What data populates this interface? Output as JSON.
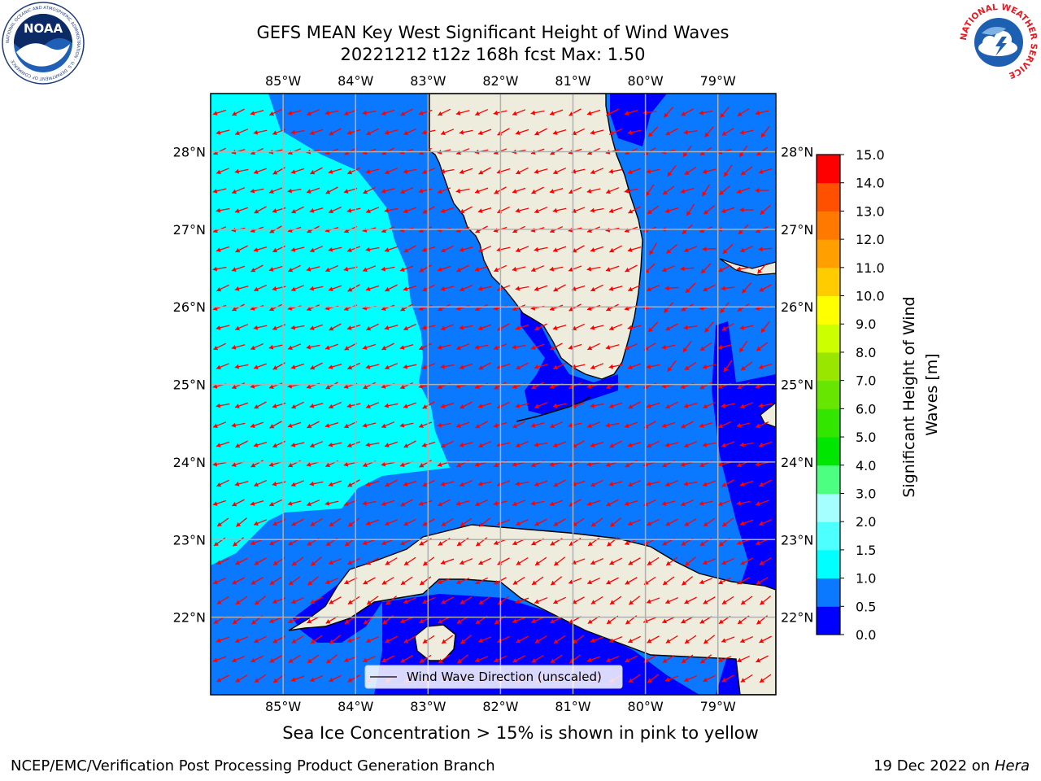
{
  "title": {
    "line1": "GEFS MEAN Key West Significant Height of Wind Waves",
    "line2": "20221212 t12z 168h fcst   Max: 1.50"
  },
  "map": {
    "lon_labels": [
      "85°W",
      "84°W",
      "83°W",
      "82°W",
      "81°W",
      "80°W",
      "79°W"
    ],
    "lon_values": [
      -85,
      -84,
      -83,
      -82,
      -81,
      -80,
      -79
    ],
    "lat_labels": [
      "28°N",
      "27°N",
      "26°N",
      "25°N",
      "24°N",
      "23°N",
      "22°N"
    ],
    "lat_values": [
      28,
      27,
      26,
      25,
      24,
      23,
      22
    ],
    "extent": {
      "lon": [
        -86.0,
        -78.2
      ],
      "lat": [
        21.0,
        28.75
      ]
    },
    "legend_label": "Wind Wave Direction (unscaled)",
    "arrow_color": "#ff0000",
    "land_color": "#eeeddd",
    "grid_color": "#b0b0b0"
  },
  "colorbar": {
    "label": "Significant Height of Wind Waves [m]",
    "tick_labels": [
      "0.0",
      "0.5",
      "1.0",
      "1.5",
      "2.0",
      "3.0",
      "4.0",
      "5.0",
      "6.0",
      "7.0",
      "8.0",
      "9.0",
      "10.0",
      "11.0",
      "12.0",
      "13.0",
      "14.0",
      "15.0"
    ],
    "colors": [
      "#0000ff",
      "#0a78ff",
      "#00ffff",
      "#4dffff",
      "#a6ffff",
      "#4dff80",
      "#00e600",
      "#33e600",
      "#66e600",
      "#99e600",
      "#ccff00",
      "#ffff00",
      "#ffcc00",
      "#ffa000",
      "#ff7800",
      "#ff5000",
      "#ff0000"
    ]
  },
  "annotations": {
    "sea_ice_note": "Sea Ice Concentration > 15% is shown in pink to yellow",
    "footer_left": "NCEP/EMC/Verification Post Processing Product Generation Branch",
    "footer_date": "19 Dec 2022 on ",
    "footer_host": "Hera"
  },
  "logos": {
    "noaa_text": "NOAA",
    "noaa_ring": "NATIONAL OCEANIC AND ATMOSPHERIC ADMINISTRATION · U.S. DEPARTMENT OF COMMERCE",
    "nws_ring": "NATIONAL WEATHER SERVICE"
  }
}
